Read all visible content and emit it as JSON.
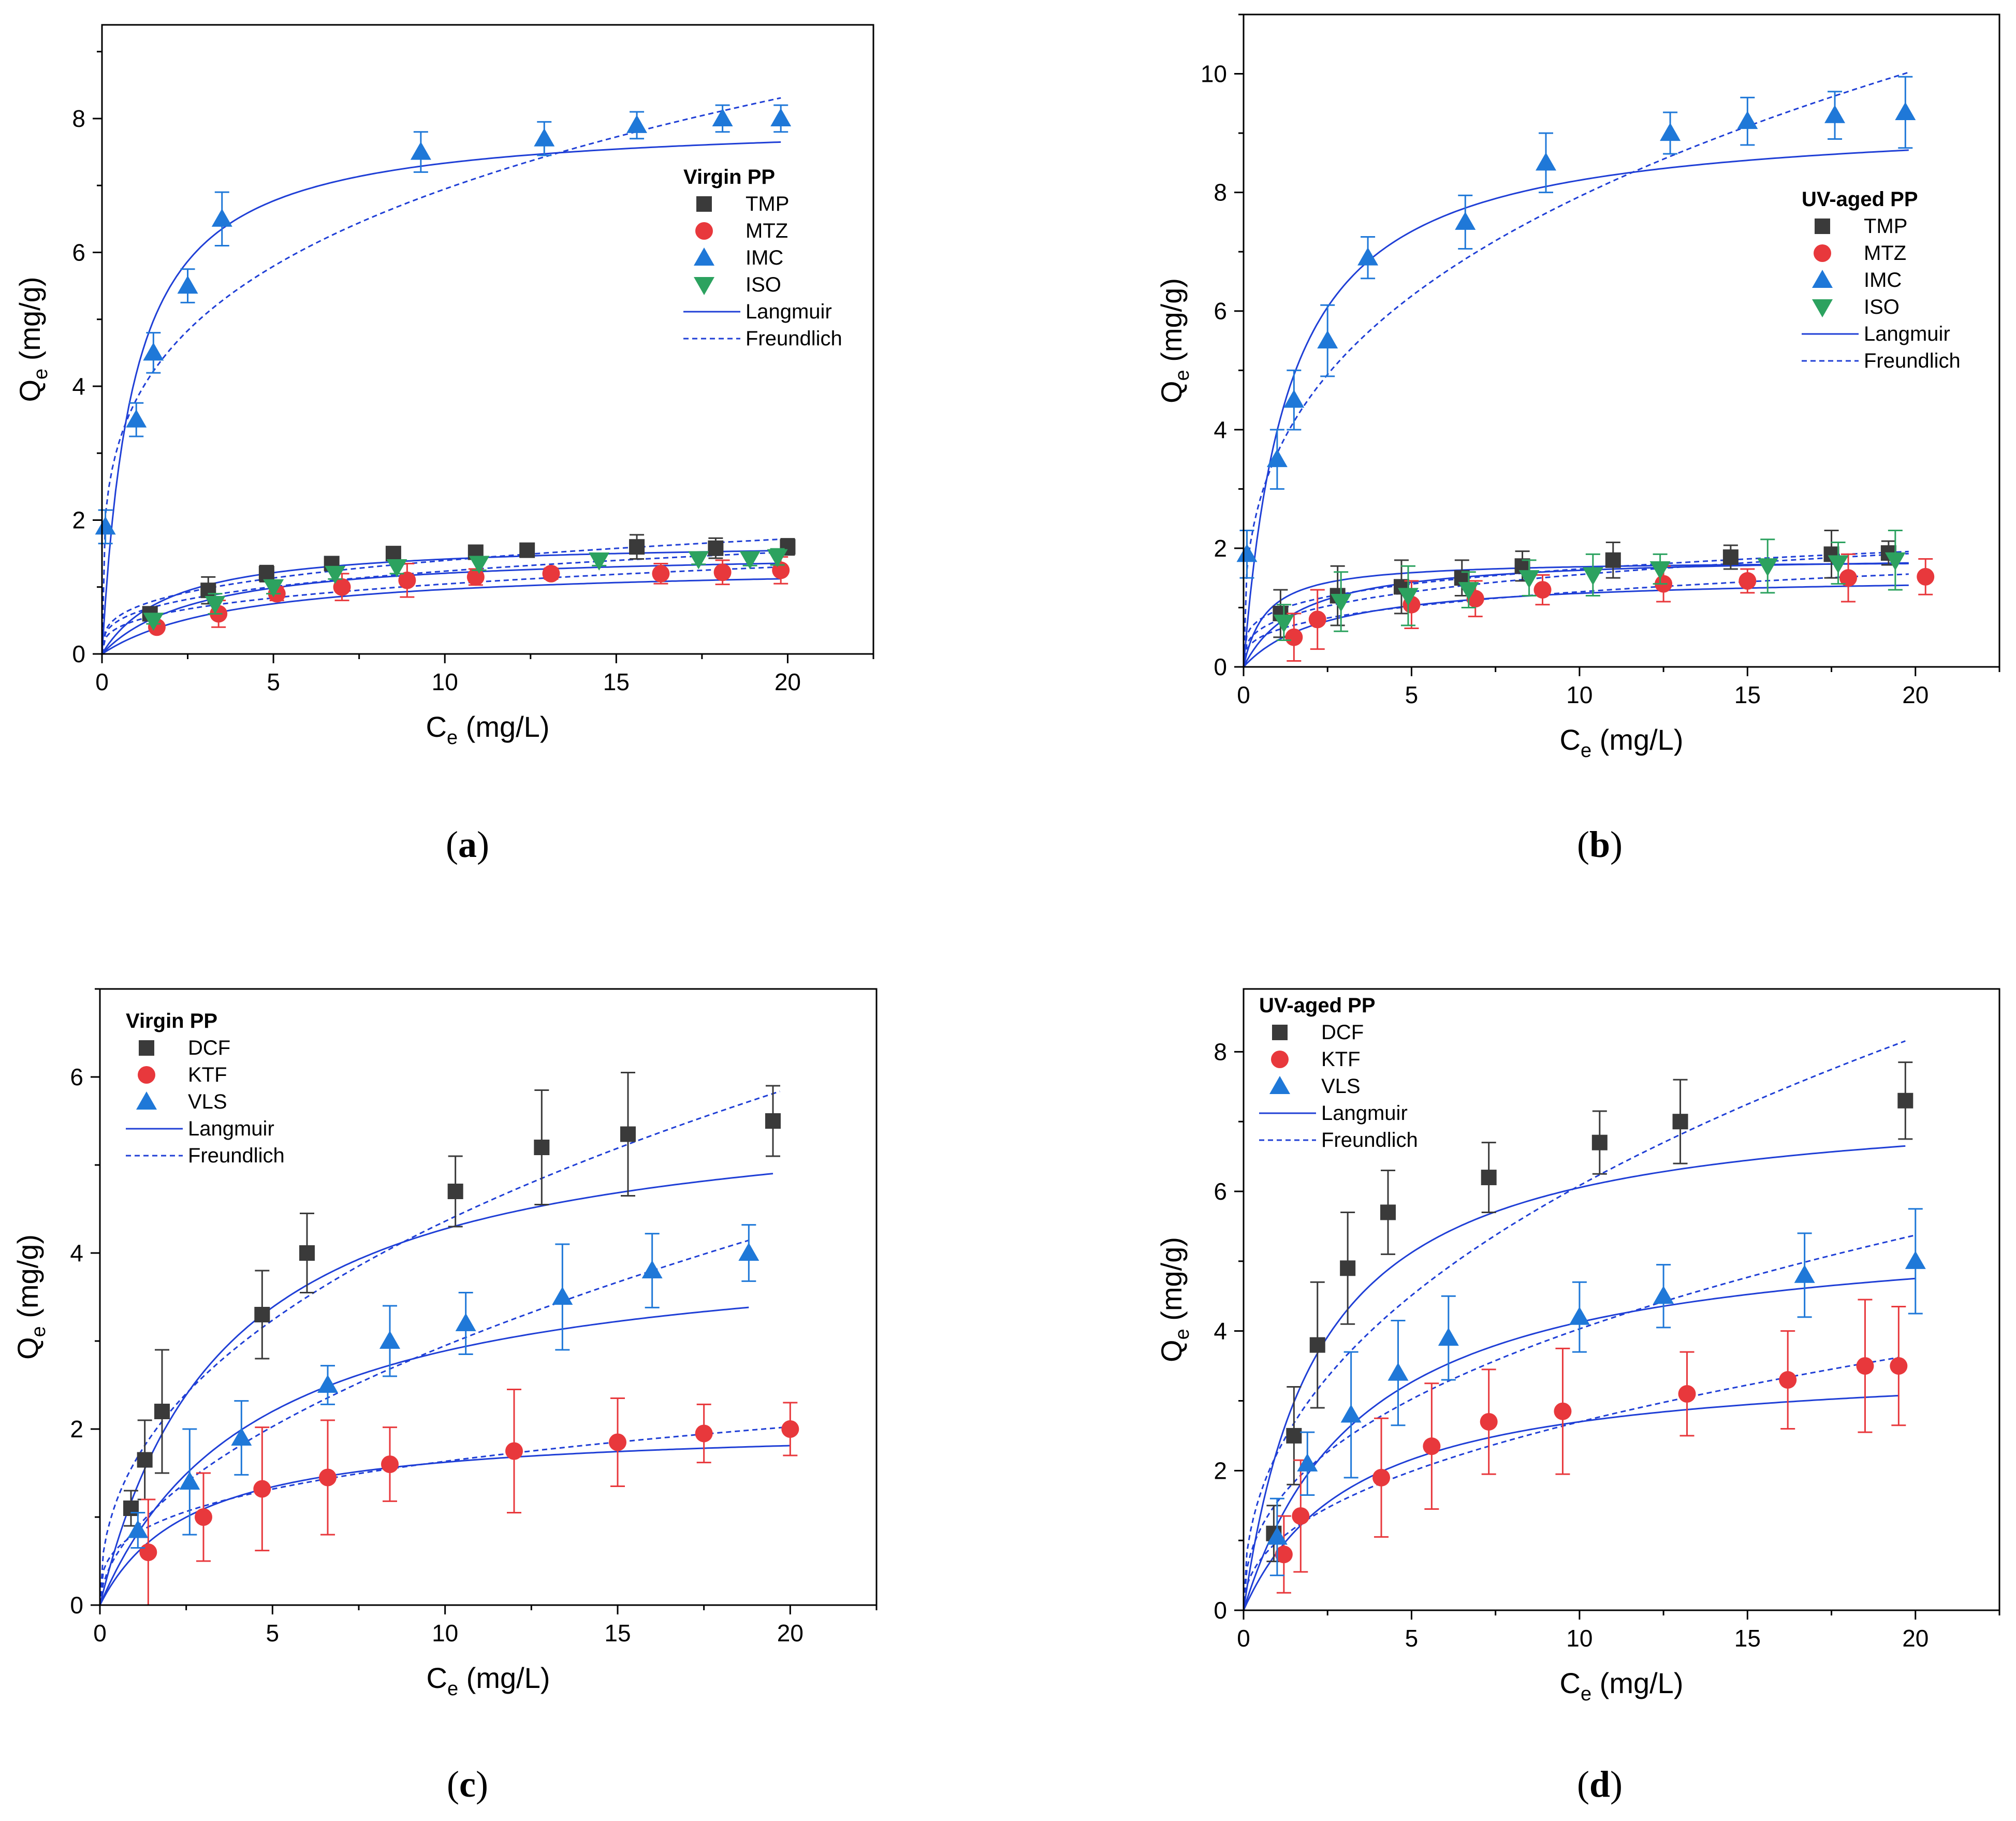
{
  "chart_data": [
    {
      "id": "a",
      "caption_letter": "a",
      "type": "scatter",
      "xlabel": {
        "main": "C",
        "sub": "e",
        "unit": "(mg/L)"
      },
      "ylabel": {
        "main": "Q",
        "sub": "e",
        "unit": "(mg/g)"
      },
      "xlim": [
        0,
        22.5
      ],
      "ylim": [
        0,
        9.4
      ],
      "xticks": [
        0,
        5,
        10,
        15,
        20
      ],
      "yticks": [
        0,
        2,
        4,
        6,
        8
      ],
      "legend_title": "Virgin PP",
      "legend_position": "right-middle",
      "series": [
        {
          "name": "TMP",
          "marker": "square",
          "color": "#3a3a3a",
          "x": [
            1.4,
            3.1,
            4.8,
            6.7,
            8.5,
            10.9,
            12.4,
            15.6,
            17.9,
            20.0
          ],
          "y": [
            0.6,
            0.95,
            1.2,
            1.35,
            1.5,
            1.52,
            1.55,
            1.6,
            1.58,
            1.6
          ],
          "err": [
            0.1,
            0.2,
            0.12,
            0.08,
            0.1,
            0.08,
            0.06,
            0.18,
            0.15,
            0.12
          ]
        },
        {
          "name": "MTZ",
          "marker": "circle",
          "color": "#e8383c",
          "x": [
            1.6,
            3.4,
            5.1,
            7.0,
            8.9,
            10.9,
            13.1,
            16.3,
            18.1,
            19.8
          ],
          "y": [
            0.4,
            0.6,
            0.9,
            1.0,
            1.1,
            1.15,
            1.2,
            1.2,
            1.22,
            1.25
          ],
          "err": [
            0.05,
            0.2,
            0.1,
            0.2,
            0.25,
            0.12,
            0.08,
            0.15,
            0.18,
            0.2
          ]
        },
        {
          "name": "IMC",
          "marker": "triangle-up",
          "color": "#1f78d8",
          "x": [
            0.1,
            1.0,
            1.5,
            2.5,
            3.5,
            9.3,
            12.9,
            15.6,
            18.1,
            19.8
          ],
          "y": [
            1.9,
            3.5,
            4.5,
            5.5,
            6.5,
            7.5,
            7.7,
            7.9,
            8.0,
            8.0
          ],
          "err": [
            0.25,
            0.25,
            0.3,
            0.25,
            0.4,
            0.3,
            0.25,
            0.2,
            0.2,
            0.2
          ]
        },
        {
          "name": "ISO",
          "marker": "triangle-down",
          "color": "#2ca25f",
          "x": [
            1.5,
            3.3,
            5.0,
            6.8,
            8.6,
            11.0,
            14.5,
            17.4,
            18.9,
            19.7
          ],
          "y": [
            0.5,
            0.75,
            1.0,
            1.2,
            1.3,
            1.35,
            1.4,
            1.42,
            1.42,
            1.45
          ],
          "err": [
            0.05,
            0.15,
            0.1,
            0.08,
            0.1,
            0.1,
            0.08,
            0.08,
            0.1,
            0.12
          ]
        }
      ],
      "fits": [
        {
          "series": "TMP",
          "model": "langmuir",
          "qmax": 1.7,
          "k": 0.5,
          "xmax": 19.8
        },
        {
          "series": "TMP",
          "model": "freundlich",
          "kf": 0.7,
          "n": 0.3,
          "xmax": 19.8
        },
        {
          "series": "MTZ",
          "model": "langmuir",
          "qmax": 1.35,
          "k": 0.25,
          "xmax": 19.8
        },
        {
          "series": "MTZ",
          "model": "freundlich",
          "kf": 0.5,
          "n": 0.32,
          "xmax": 19.8
        },
        {
          "series": "IMC",
          "model": "langmuir",
          "qmax": 8.0,
          "k": 1.1,
          "xmax": 19.8
        },
        {
          "series": "IMC",
          "model": "freundlich",
          "kf": 3.8,
          "n": 0.262,
          "xmax": 19.8
        },
        {
          "series": "ISO",
          "model": "langmuir",
          "qmax": 1.55,
          "k": 0.35,
          "xmax": 19.8
        },
        {
          "series": "ISO",
          "model": "freundlich",
          "kf": 0.62,
          "n": 0.3,
          "xmax": 19.8
        }
      ],
      "legend_fit_entries": [
        "Langmuir",
        "Freundlich"
      ]
    },
    {
      "id": "b",
      "caption_letter": "b",
      "type": "scatter",
      "xlabel": {
        "main": "C",
        "sub": "e",
        "unit": "(mg/L)"
      },
      "ylabel": {
        "main": "Q",
        "sub": "e",
        "unit": "(mg/g)"
      },
      "xlim": [
        0,
        22.5
      ],
      "ylim": [
        0,
        11
      ],
      "xticks": [
        0,
        5,
        10,
        15,
        20
      ],
      "yticks": [
        0,
        2,
        4,
        6,
        8,
        10
      ],
      "legend_title": "UV-aged PP",
      "legend_position": "right-middle",
      "series": [
        {
          "name": "TMP",
          "marker": "square",
          "color": "#3a3a3a",
          "x": [
            1.1,
            2.8,
            4.7,
            6.5,
            8.3,
            11.0,
            14.5,
            17.5,
            19.2
          ],
          "y": [
            0.9,
            1.2,
            1.35,
            1.5,
            1.7,
            1.8,
            1.85,
            1.9,
            1.92
          ],
          "err": [
            0.4,
            0.5,
            0.45,
            0.3,
            0.25,
            0.3,
            0.2,
            0.4,
            0.2
          ]
        },
        {
          "name": "MTZ",
          "marker": "circle",
          "color": "#e8383c",
          "x": [
            1.5,
            2.2,
            5.0,
            6.9,
            8.9,
            12.5,
            15.0,
            18.0,
            20.3
          ],
          "y": [
            0.5,
            0.8,
            1.05,
            1.15,
            1.3,
            1.4,
            1.45,
            1.5,
            1.52
          ],
          "err": [
            0.4,
            0.5,
            0.4,
            0.3,
            0.25,
            0.3,
            0.2,
            0.4,
            0.3
          ]
        },
        {
          "name": "IMC",
          "marker": "triangle-up",
          "color": "#1f78d8",
          "x": [
            0.1,
            1.0,
            1.5,
            2.5,
            3.7,
            6.6,
            9.0,
            12.7,
            15.0,
            17.6,
            19.7
          ],
          "y": [
            1.9,
            3.5,
            4.5,
            5.5,
            6.9,
            7.5,
            8.5,
            9.0,
            9.2,
            9.3,
            9.35
          ],
          "err": [
            0.4,
            0.5,
            0.5,
            0.6,
            0.35,
            0.45,
            0.5,
            0.35,
            0.4,
            0.4,
            0.6
          ]
        },
        {
          "name": "ISO",
          "marker": "triangle-down",
          "color": "#2ca25f",
          "x": [
            1.2,
            2.9,
            4.9,
            6.7,
            8.5,
            10.4,
            12.4,
            15.6,
            17.7,
            19.4
          ],
          "y": [
            0.75,
            1.1,
            1.2,
            1.3,
            1.5,
            1.55,
            1.65,
            1.7,
            1.75,
            1.8
          ],
          "err": [
            0.3,
            0.5,
            0.5,
            0.3,
            0.3,
            0.35,
            0.25,
            0.45,
            0.35,
            0.5
          ]
        }
      ],
      "fits": [
        {
          "series": "TMP",
          "model": "langmuir",
          "qmax": 1.8,
          "k": 1.5,
          "xmax": 19.8
        },
        {
          "series": "TMP",
          "model": "freundlich",
          "kf": 0.95,
          "n": 0.24,
          "xmax": 19.8
        },
        {
          "series": "MTZ",
          "model": "langmuir",
          "qmax": 1.55,
          "k": 0.4,
          "xmax": 19.8
        },
        {
          "series": "MTZ",
          "model": "freundlich",
          "kf": 0.62,
          "n": 0.31,
          "xmax": 19.8
        },
        {
          "series": "IMC",
          "model": "langmuir",
          "qmax": 9.3,
          "k": 0.75,
          "xmax": 19.8
        },
        {
          "series": "IMC",
          "model": "freundlich",
          "kf": 3.6,
          "n": 0.343,
          "xmax": 19.8
        },
        {
          "series": "ISO",
          "model": "langmuir",
          "qmax": 1.9,
          "k": 0.6,
          "xmax": 19.8
        },
        {
          "series": "ISO",
          "model": "freundlich",
          "kf": 0.78,
          "n": 0.3,
          "xmax": 19.8
        }
      ],
      "legend_fit_entries": [
        "Langmuir",
        "Freundlich"
      ]
    },
    {
      "id": "c",
      "caption_letter": "c",
      "type": "scatter",
      "xlabel": {
        "main": "C",
        "sub": "e",
        "unit": "(mg/L)"
      },
      "ylabel": {
        "main": "Q",
        "sub": "e",
        "unit": "(mg/g)"
      },
      "xlim": [
        0,
        22.5
      ],
      "ylim": [
        0,
        7
      ],
      "xticks": [
        0,
        5,
        10,
        15,
        20
      ],
      "yticks": [
        0,
        2,
        4,
        6
      ],
      "legend_title": "Virgin PP",
      "legend_position": "top-left",
      "series": [
        {
          "name": "DCF",
          "marker": "square",
          "color": "#3a3a3a",
          "x": [
            0.9,
            1.3,
            1.8,
            4.7,
            6.0,
            10.3,
            12.8,
            15.3,
            19.5
          ],
          "y": [
            1.1,
            1.65,
            2.2,
            3.3,
            4.0,
            4.7,
            5.2,
            5.35,
            5.5
          ],
          "err": [
            0.2,
            0.45,
            0.7,
            0.5,
            0.45,
            0.4,
            0.65,
            0.7,
            0.4
          ]
        },
        {
          "name": "KTF",
          "marker": "circle",
          "color": "#e8383c",
          "x": [
            1.4,
            3.0,
            4.7,
            6.6,
            8.4,
            12.0,
            15.0,
            17.5,
            20.0
          ],
          "y": [
            0.6,
            1.0,
            1.32,
            1.45,
            1.6,
            1.75,
            1.85,
            1.95,
            2.0
          ],
          "err": [
            0.6,
            0.5,
            0.7,
            0.65,
            0.42,
            0.7,
            0.5,
            0.33,
            0.3
          ]
        },
        {
          "name": "VLS",
          "marker": "triangle-up",
          "color": "#1f78d8",
          "x": [
            1.1,
            2.6,
            4.1,
            6.6,
            8.4,
            10.6,
            13.4,
            16.0,
            18.8
          ],
          "y": [
            0.85,
            1.4,
            1.9,
            2.5,
            3.0,
            3.2,
            3.5,
            3.8,
            4.0
          ],
          "err": [
            0.2,
            0.6,
            0.42,
            0.22,
            0.4,
            0.35,
            0.6,
            0.42,
            0.32
          ]
        }
      ],
      "fits": [
        {
          "series": "DCF",
          "model": "langmuir",
          "qmax": 5.8,
          "k": 0.28,
          "xmax": 19.5
        },
        {
          "series": "DCF",
          "model": "freundlich",
          "kf": 1.62,
          "n": 0.43,
          "xmax": 19.7
        },
        {
          "series": "KTF",
          "model": "langmuir",
          "qmax": 2.05,
          "k": 0.38,
          "xmax": 20.0
        },
        {
          "series": "KTF",
          "model": "freundlich",
          "kf": 0.8,
          "n": 0.31,
          "xmax": 20.0
        },
        {
          "series": "VLS",
          "model": "langmuir",
          "qmax": 4.2,
          "k": 0.22,
          "xmax": 18.8
        },
        {
          "series": "VLS",
          "model": "freundlich",
          "kf": 0.85,
          "n": 0.54,
          "xmax": 18.8
        }
      ],
      "legend_fit_entries": [
        "Langmuir",
        "Freundlich"
      ]
    },
    {
      "id": "d",
      "caption_letter": "d",
      "type": "scatter",
      "xlabel": {
        "main": "C",
        "sub": "e",
        "unit": "(mg/L)"
      },
      "ylabel": {
        "main": "Q",
        "sub": "e",
        "unit": "(mg/g)"
      },
      "xlim": [
        0,
        22.5
      ],
      "ylim": [
        0,
        8.9
      ],
      "xticks": [
        0,
        5,
        10,
        15,
        20
      ],
      "yticks": [
        0,
        2,
        4,
        6,
        8
      ],
      "legend_title": "UV-aged PP",
      "legend_position": "top-left",
      "series": [
        {
          "name": "DCF",
          "marker": "square",
          "color": "#3a3a3a",
          "x": [
            0.9,
            1.5,
            2.2,
            3.1,
            4.3,
            7.3,
            10.6,
            13.0,
            19.7
          ],
          "y": [
            1.1,
            2.5,
            3.8,
            4.9,
            5.7,
            6.2,
            6.7,
            7.0,
            7.3
          ],
          "err": [
            0.4,
            0.7,
            0.9,
            0.8,
            0.6,
            0.5,
            0.45,
            0.6,
            0.55
          ]
        },
        {
          "name": "KTF",
          "marker": "circle",
          "color": "#e8383c",
          "x": [
            1.2,
            1.7,
            4.1,
            5.6,
            7.3,
            9.5,
            13.2,
            16.2,
            18.5,
            19.5
          ],
          "y": [
            0.8,
            1.35,
            1.9,
            2.35,
            2.7,
            2.85,
            3.1,
            3.3,
            3.5,
            3.5
          ],
          "err": [
            0.55,
            0.8,
            0.85,
            0.9,
            0.75,
            0.9,
            0.6,
            0.7,
            0.95,
            0.85
          ]
        },
        {
          "name": "VLS",
          "marker": "triangle-up",
          "color": "#1f78d8",
          "x": [
            1.0,
            1.9,
            3.2,
            4.6,
            6.1,
            10.0,
            12.5,
            16.7,
            20.0
          ],
          "y": [
            1.05,
            2.1,
            2.8,
            3.4,
            3.9,
            4.2,
            4.5,
            4.8,
            5.0
          ],
          "err": [
            0.55,
            0.45,
            0.9,
            0.75,
            0.6,
            0.5,
            0.45,
            0.6,
            0.75
          ]
        }
      ],
      "fits": [
        {
          "series": "DCF",
          "model": "langmuir",
          "qmax": 7.4,
          "k": 0.45,
          "xmax": 19.7
        },
        {
          "series": "DCF",
          "model": "freundlich",
          "kf": 2.25,
          "n": 0.432,
          "xmax": 19.7
        },
        {
          "series": "KTF",
          "model": "langmuir",
          "qmax": 3.6,
          "k": 0.3,
          "xmax": 19.5
        },
        {
          "series": "KTF",
          "model": "freundlich",
          "kf": 0.98,
          "n": 0.44,
          "xmax": 19.5
        },
        {
          "series": "VLS",
          "model": "langmuir",
          "qmax": 5.6,
          "k": 0.28,
          "xmax": 20.0
        },
        {
          "series": "VLS",
          "model": "freundlich",
          "kf": 1.55,
          "n": 0.415,
          "xmax": 20.0
        }
      ],
      "legend_fit_entries": [
        "Langmuir",
        "Freundlich"
      ]
    }
  ]
}
